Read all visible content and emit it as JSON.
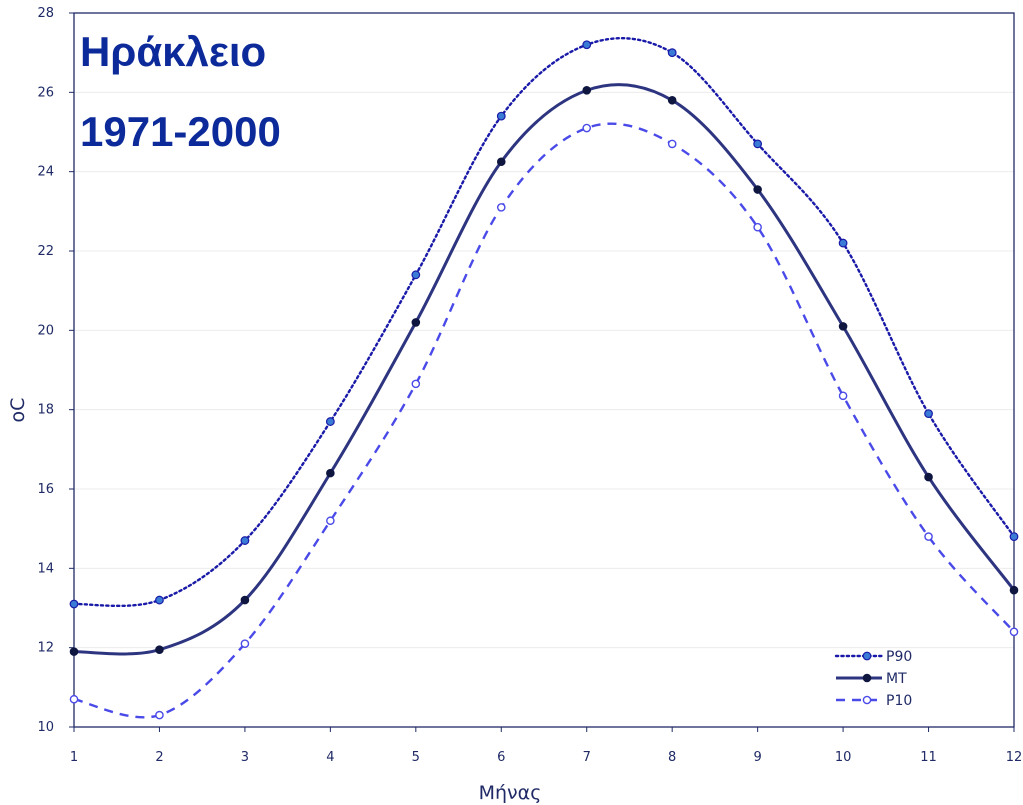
{
  "chart_data": {
    "type": "line",
    "title_lines": [
      "Ηράκλειο",
      "1971-2000"
    ],
    "top_text": "",
    "xlabel": "Μήνας",
    "ylabel": "oC",
    "x": [
      1,
      2,
      3,
      4,
      5,
      6,
      7,
      8,
      9,
      10,
      11,
      12
    ],
    "x_tick_labels": [
      "1",
      "2",
      "3",
      "4",
      "5",
      "6",
      "7",
      "8",
      "9",
      "10",
      "11",
      "12"
    ],
    "y_tick_labels": [
      "10",
      "12",
      "14",
      "16",
      "18",
      "20",
      "22",
      "24",
      "26",
      "28"
    ],
    "xlim": [
      1,
      12
    ],
    "ylim": [
      10,
      28
    ],
    "grid": true,
    "legend_position": "bottom-right",
    "series": [
      {
        "name": "P90",
        "color": "#1a1aa8",
        "style": "dotted",
        "marker": "filled-light",
        "values": [
          13.1,
          13.2,
          14.7,
          17.7,
          21.4,
          25.4,
          27.2,
          27.0,
          24.7,
          22.2,
          17.9,
          14.8
        ]
      },
      {
        "name": "MT",
        "color": "#2e3580",
        "style": "solid",
        "marker": "filled-dark",
        "values": [
          11.9,
          11.95,
          13.2,
          16.4,
          20.2,
          24.25,
          26.05,
          25.8,
          23.55,
          20.1,
          16.3,
          13.45
        ]
      },
      {
        "name": "P10",
        "color": "#4a4ae8",
        "style": "dashed",
        "marker": "open",
        "values": [
          10.7,
          10.3,
          12.1,
          15.2,
          18.65,
          23.1,
          25.1,
          24.7,
          22.6,
          18.35,
          14.8,
          12.4
        ]
      }
    ]
  }
}
